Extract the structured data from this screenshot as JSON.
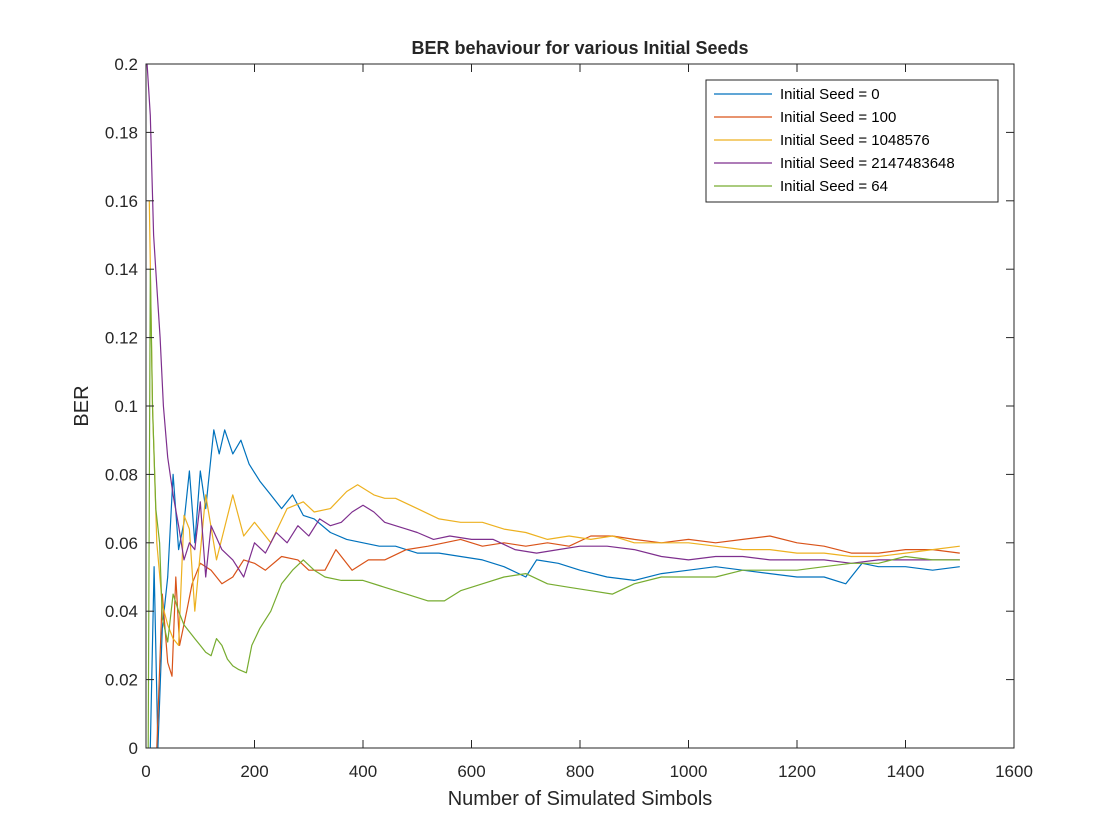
{
  "chart_data": {
    "type": "line",
    "title": "BER behaviour for various Initial Seeds",
    "xlabel": "Number of Simulated Simbols",
    "ylabel": "BER",
    "xlim": [
      0,
      1600
    ],
    "ylim": [
      0,
      0.2
    ],
    "xticks": [
      "0",
      "200",
      "400",
      "600",
      "800",
      "1000",
      "1200",
      "1400",
      "1600"
    ],
    "yticks": [
      "0",
      "0.02",
      "0.04",
      "0.06",
      "0.08",
      "0.1",
      "0.12",
      "0.14",
      "0.16",
      "0.18",
      "0.2"
    ],
    "grid": false,
    "legend_position": "top-right",
    "series": [
      {
        "name": "Initial Seed = 0",
        "color": "#0072BD",
        "points": [
          [
            8,
            0
          ],
          [
            15,
            0.053
          ],
          [
            22,
            0
          ],
          [
            30,
            0.035
          ],
          [
            40,
            0.05
          ],
          [
            50,
            0.08
          ],
          [
            60,
            0.058
          ],
          [
            70,
            0.066
          ],
          [
            80,
            0.081
          ],
          [
            90,
            0.06
          ],
          [
            100,
            0.081
          ],
          [
            110,
            0.07
          ],
          [
            125,
            0.093
          ],
          [
            135,
            0.086
          ],
          [
            145,
            0.093
          ],
          [
            160,
            0.086
          ],
          [
            175,
            0.09
          ],
          [
            190,
            0.083
          ],
          [
            210,
            0.078
          ],
          [
            230,
            0.074
          ],
          [
            250,
            0.07
          ],
          [
            270,
            0.074
          ],
          [
            290,
            0.068
          ],
          [
            310,
            0.067
          ],
          [
            340,
            0.063
          ],
          [
            370,
            0.061
          ],
          [
            400,
            0.06
          ],
          [
            430,
            0.059
          ],
          [
            460,
            0.059
          ],
          [
            500,
            0.057
          ],
          [
            540,
            0.057
          ],
          [
            580,
            0.056
          ],
          [
            620,
            0.055
          ],
          [
            660,
            0.053
          ],
          [
            700,
            0.05
          ],
          [
            720,
            0.055
          ],
          [
            760,
            0.054
          ],
          [
            800,
            0.052
          ],
          [
            850,
            0.05
          ],
          [
            900,
            0.049
          ],
          [
            950,
            0.051
          ],
          [
            1000,
            0.052
          ],
          [
            1050,
            0.053
          ],
          [
            1100,
            0.052
          ],
          [
            1150,
            0.051
          ],
          [
            1200,
            0.05
          ],
          [
            1250,
            0.05
          ],
          [
            1290,
            0.048
          ],
          [
            1320,
            0.054
          ],
          [
            1350,
            0.053
          ],
          [
            1400,
            0.053
          ],
          [
            1450,
            0.052
          ],
          [
            1500,
            0.053
          ]
        ]
      },
      {
        "name": "Initial Seed = 100",
        "color": "#D95319",
        "points": [
          [
            20,
            0
          ],
          [
            30,
            0.045
          ],
          [
            40,
            0.025
          ],
          [
            48,
            0.021
          ],
          [
            55,
            0.05
          ],
          [
            62,
            0.03
          ],
          [
            75,
            0.04
          ],
          [
            85,
            0.048
          ],
          [
            100,
            0.054
          ],
          [
            120,
            0.052
          ],
          [
            140,
            0.048
          ],
          [
            160,
            0.05
          ],
          [
            180,
            0.055
          ],
          [
            200,
            0.054
          ],
          [
            220,
            0.052
          ],
          [
            250,
            0.056
          ],
          [
            280,
            0.055
          ],
          [
            300,
            0.052
          ],
          [
            330,
            0.052
          ],
          [
            350,
            0.058
          ],
          [
            380,
            0.052
          ],
          [
            410,
            0.055
          ],
          [
            440,
            0.055
          ],
          [
            480,
            0.058
          ],
          [
            520,
            0.059
          ],
          [
            550,
            0.06
          ],
          [
            580,
            0.061
          ],
          [
            620,
            0.059
          ],
          [
            660,
            0.06
          ],
          [
            700,
            0.059
          ],
          [
            740,
            0.06
          ],
          [
            780,
            0.059
          ],
          [
            820,
            0.062
          ],
          [
            860,
            0.062
          ],
          [
            900,
            0.061
          ],
          [
            950,
            0.06
          ],
          [
            1000,
            0.061
          ],
          [
            1050,
            0.06
          ],
          [
            1100,
            0.061
          ],
          [
            1150,
            0.062
          ],
          [
            1200,
            0.06
          ],
          [
            1250,
            0.059
          ],
          [
            1300,
            0.057
          ],
          [
            1350,
            0.057
          ],
          [
            1400,
            0.058
          ],
          [
            1450,
            0.058
          ],
          [
            1500,
            0.057
          ]
        ]
      },
      {
        "name": "Initial Seed = 1048576",
        "color": "#EDB120",
        "points": [
          [
            6,
            0.16
          ],
          [
            12,
            0.1
          ],
          [
            20,
            0.06
          ],
          [
            30,
            0.042
          ],
          [
            40,
            0.036
          ],
          [
            50,
            0.032
          ],
          [
            60,
            0.03
          ],
          [
            70,
            0.068
          ],
          [
            80,
            0.064
          ],
          [
            90,
            0.04
          ],
          [
            110,
            0.074
          ],
          [
            130,
            0.055
          ],
          [
            160,
            0.074
          ],
          [
            180,
            0.062
          ],
          [
            200,
            0.066
          ],
          [
            230,
            0.06
          ],
          [
            260,
            0.07
          ],
          [
            290,
            0.072
          ],
          [
            310,
            0.069
          ],
          [
            340,
            0.07
          ],
          [
            370,
            0.075
          ],
          [
            390,
            0.077
          ],
          [
            420,
            0.074
          ],
          [
            440,
            0.073
          ],
          [
            460,
            0.073
          ],
          [
            500,
            0.07
          ],
          [
            540,
            0.067
          ],
          [
            580,
            0.066
          ],
          [
            620,
            0.066
          ],
          [
            660,
            0.064
          ],
          [
            700,
            0.063
          ],
          [
            740,
            0.061
          ],
          [
            780,
            0.062
          ],
          [
            820,
            0.061
          ],
          [
            860,
            0.062
          ],
          [
            900,
            0.06
          ],
          [
            950,
            0.06
          ],
          [
            1000,
            0.06
          ],
          [
            1050,
            0.059
          ],
          [
            1100,
            0.058
          ],
          [
            1150,
            0.058
          ],
          [
            1200,
            0.057
          ],
          [
            1250,
            0.057
          ],
          [
            1300,
            0.056
          ],
          [
            1350,
            0.056
          ],
          [
            1400,
            0.057
          ],
          [
            1450,
            0.058
          ],
          [
            1500,
            0.059
          ]
        ]
      },
      {
        "name": "Initial Seed = 2147483648",
        "color": "#7E2F8E",
        "points": [
          [
            2,
            0.2
          ],
          [
            8,
            0.185
          ],
          [
            14,
            0.15
          ],
          [
            20,
            0.135
          ],
          [
            26,
            0.12
          ],
          [
            32,
            0.1
          ],
          [
            40,
            0.085
          ],
          [
            50,
            0.074
          ],
          [
            60,
            0.065
          ],
          [
            70,
            0.055
          ],
          [
            80,
            0.06
          ],
          [
            90,
            0.058
          ],
          [
            100,
            0.072
          ],
          [
            110,
            0.05
          ],
          [
            120,
            0.065
          ],
          [
            140,
            0.058
          ],
          [
            160,
            0.055
          ],
          [
            180,
            0.05
          ],
          [
            200,
            0.06
          ],
          [
            220,
            0.057
          ],
          [
            240,
            0.063
          ],
          [
            260,
            0.06
          ],
          [
            280,
            0.065
          ],
          [
            300,
            0.062
          ],
          [
            320,
            0.067
          ],
          [
            340,
            0.065
          ],
          [
            360,
            0.066
          ],
          [
            380,
            0.069
          ],
          [
            400,
            0.071
          ],
          [
            420,
            0.069
          ],
          [
            440,
            0.066
          ],
          [
            460,
            0.065
          ],
          [
            480,
            0.064
          ],
          [
            500,
            0.063
          ],
          [
            530,
            0.061
          ],
          [
            560,
            0.062
          ],
          [
            600,
            0.061
          ],
          [
            640,
            0.061
          ],
          [
            680,
            0.058
          ],
          [
            720,
            0.057
          ],
          [
            760,
            0.058
          ],
          [
            800,
            0.059
          ],
          [
            850,
            0.059
          ],
          [
            900,
            0.058
          ],
          [
            950,
            0.056
          ],
          [
            1000,
            0.055
          ],
          [
            1050,
            0.056
          ],
          [
            1100,
            0.056
          ],
          [
            1150,
            0.055
          ],
          [
            1200,
            0.055
          ],
          [
            1250,
            0.055
          ],
          [
            1300,
            0.054
          ],
          [
            1350,
            0.055
          ],
          [
            1400,
            0.055
          ],
          [
            1450,
            0.055
          ],
          [
            1500,
            0.055
          ]
        ]
      },
      {
        "name": "Initial Seed = 64",
        "color": "#77AC30",
        "points": [
          [
            4,
            0
          ],
          [
            8,
            0.14
          ],
          [
            12,
            0.1
          ],
          [
            18,
            0.07
          ],
          [
            25,
            0.06
          ],
          [
            30,
            0.038
          ],
          [
            40,
            0.031
          ],
          [
            50,
            0.045
          ],
          [
            60,
            0.04
          ],
          [
            70,
            0.036
          ],
          [
            80,
            0.034
          ],
          [
            90,
            0.032
          ],
          [
            100,
            0.03
          ],
          [
            110,
            0.028
          ],
          [
            120,
            0.027
          ],
          [
            130,
            0.032
          ],
          [
            140,
            0.03
          ],
          [
            150,
            0.026
          ],
          [
            160,
            0.024
          ],
          [
            170,
            0.023
          ],
          [
            185,
            0.022
          ],
          [
            195,
            0.03
          ],
          [
            210,
            0.035
          ],
          [
            230,
            0.04
          ],
          [
            250,
            0.048
          ],
          [
            270,
            0.052
          ],
          [
            290,
            0.055
          ],
          [
            310,
            0.052
          ],
          [
            330,
            0.05
          ],
          [
            360,
            0.049
          ],
          [
            400,
            0.049
          ],
          [
            440,
            0.047
          ],
          [
            480,
            0.045
          ],
          [
            520,
            0.043
          ],
          [
            550,
            0.043
          ],
          [
            580,
            0.046
          ],
          [
            620,
            0.048
          ],
          [
            660,
            0.05
          ],
          [
            700,
            0.051
          ],
          [
            740,
            0.048
          ],
          [
            780,
            0.047
          ],
          [
            820,
            0.046
          ],
          [
            860,
            0.045
          ],
          [
            900,
            0.048
          ],
          [
            950,
            0.05
          ],
          [
            1000,
            0.05
          ],
          [
            1050,
            0.05
          ],
          [
            1100,
            0.052
          ],
          [
            1150,
            0.052
          ],
          [
            1200,
            0.052
          ],
          [
            1250,
            0.053
          ],
          [
            1300,
            0.054
          ],
          [
            1350,
            0.054
          ],
          [
            1400,
            0.056
          ],
          [
            1450,
            0.055
          ],
          [
            1500,
            0.055
          ]
        ]
      }
    ]
  }
}
